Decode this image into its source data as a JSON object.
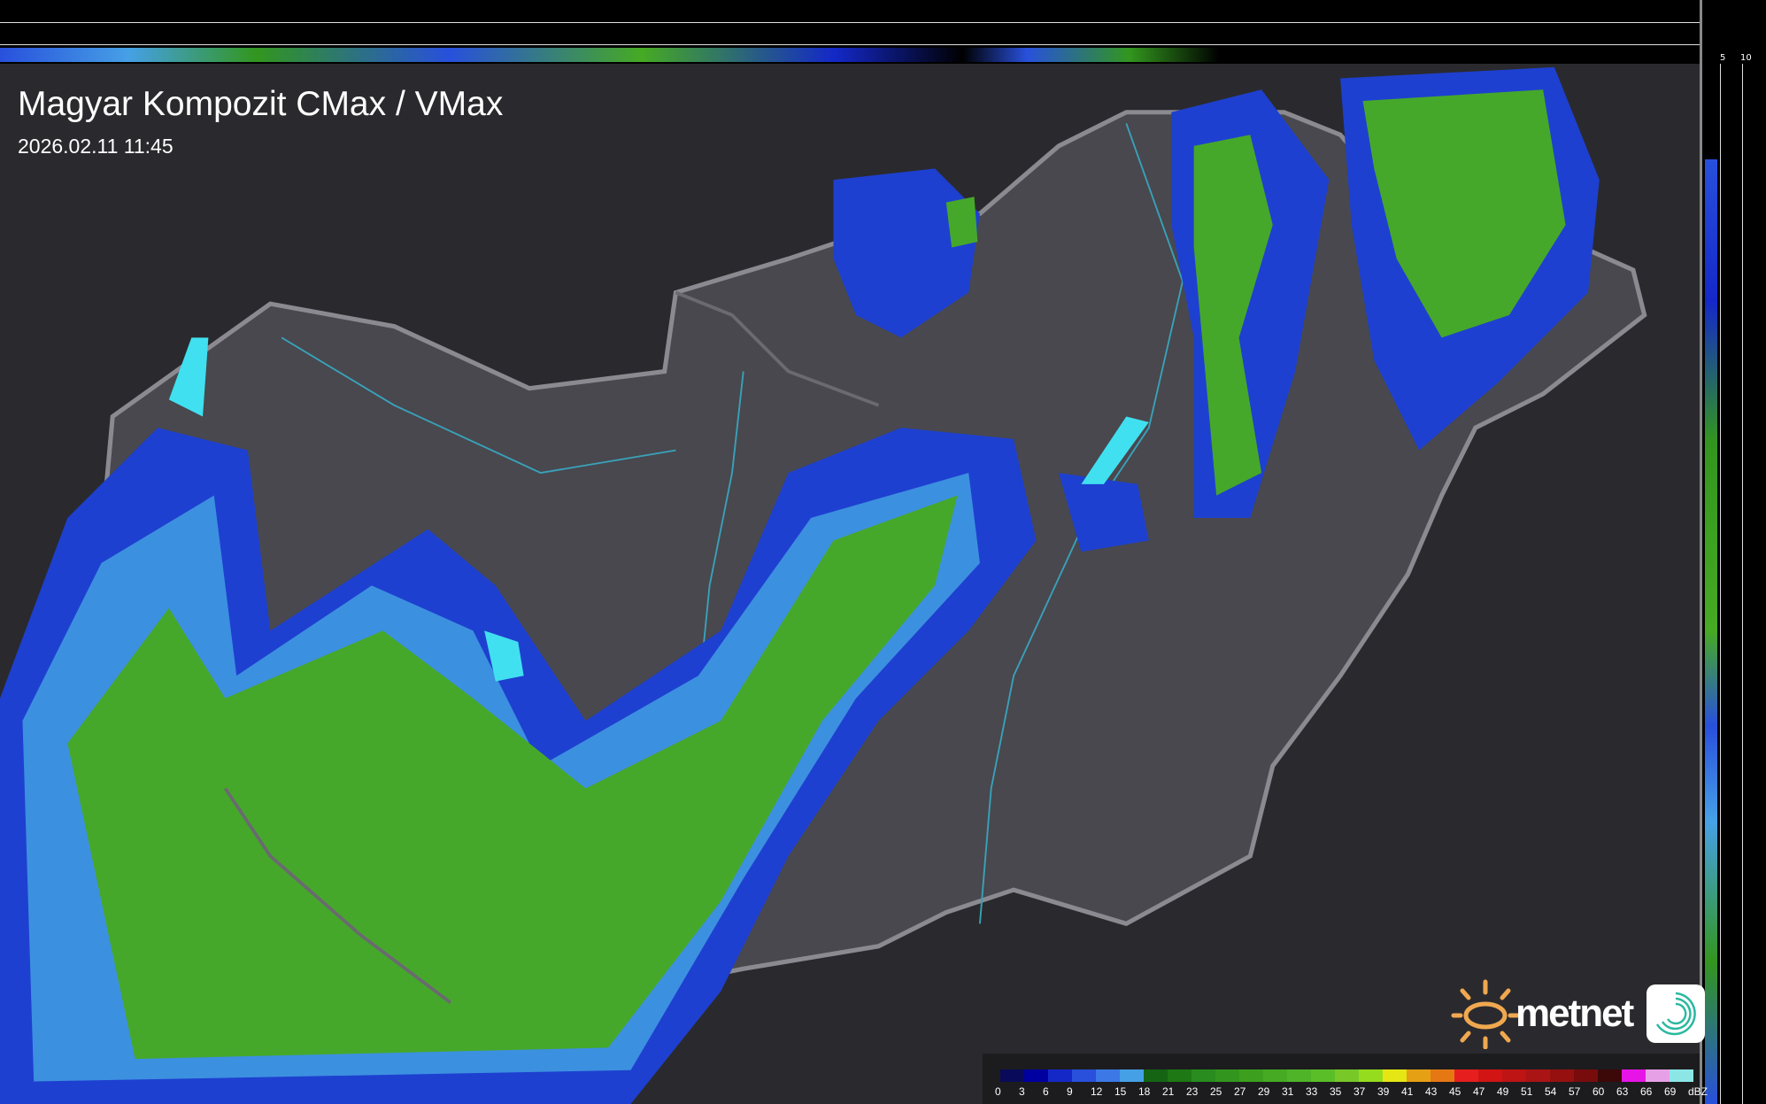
{
  "header": {
    "title": "Magyar Kompozit CMax / VMax",
    "timestamp": "2026.02.11 11:45"
  },
  "profile_axes": {
    "top_labels": [
      "10",
      "5"
    ],
    "right_labels": [
      "5",
      "10"
    ]
  },
  "legend": {
    "unit": "dBZ",
    "values": [
      "0",
      "3",
      "6",
      "9",
      "12",
      "15",
      "18",
      "21",
      "23",
      "25",
      "27",
      "29",
      "31",
      "33",
      "35",
      "37",
      "39",
      "41",
      "43",
      "45",
      "47",
      "49",
      "51",
      "54",
      "57",
      "60",
      "63",
      "66",
      "69"
    ],
    "colors": [
      "#0a0a5a",
      "#0000a0",
      "#1428c8",
      "#2850dc",
      "#3c78e6",
      "#46a0e6",
      "#146414",
      "#1e7814",
      "#288c1e",
      "#32961e",
      "#3ca01e",
      "#46aa23",
      "#50b428",
      "#5abe28",
      "#78c828",
      "#96dc1e",
      "#e6e614",
      "#e6a014",
      "#e67814",
      "#e61e1e",
      "#d21414",
      "#be1414",
      "#aa1414",
      "#961010",
      "#780c0c",
      "#3c0808",
      "#e614e6",
      "#e6a0e6",
      "#8ce6e6"
    ]
  },
  "logo": {
    "brand": "metnet",
    "sun_color": "#f0a850",
    "app_icon_color": "#2ab8a0"
  },
  "colors": {
    "background": "#2a2a2e",
    "country_fill": "#4a4a50",
    "border": "#8a8a90",
    "rivers": "#3aa0b8"
  }
}
